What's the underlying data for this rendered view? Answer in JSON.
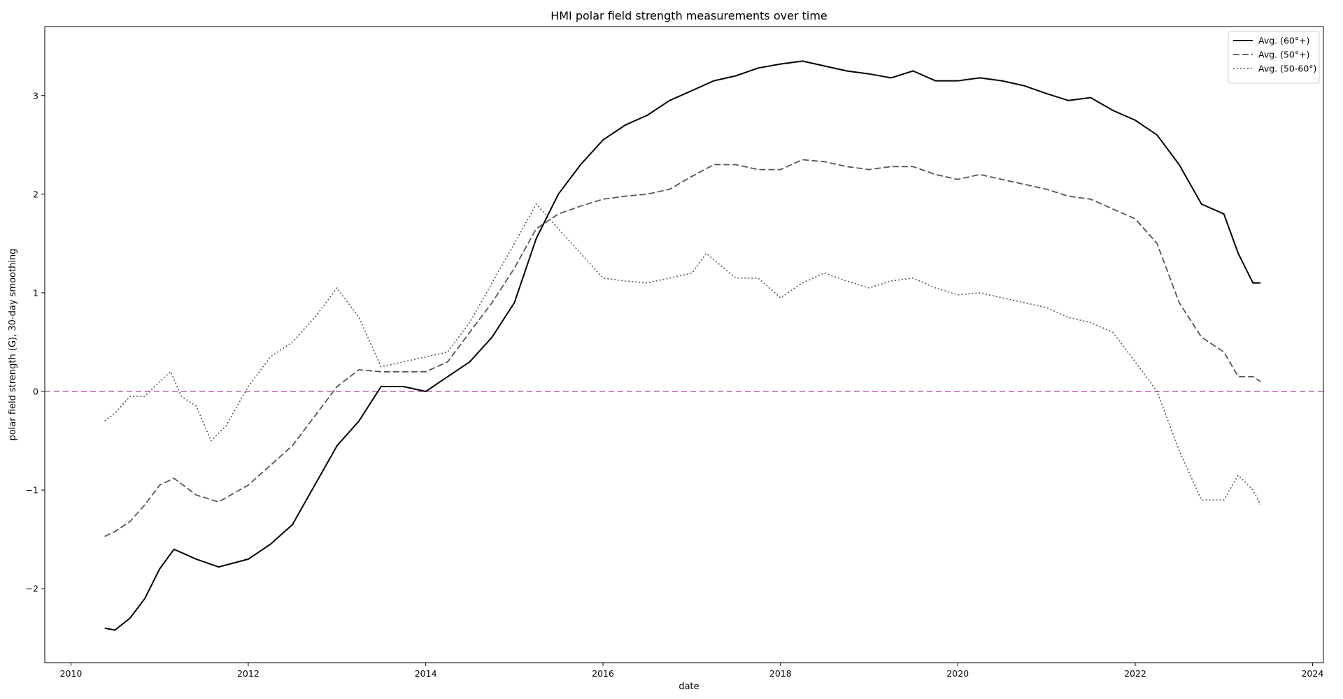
{
  "chart_data": {
    "type": "line",
    "title": "HMI polar field strength measurements over time",
    "xlabel": "date",
    "ylabel": "polar field strength (G), 30-day smoothing",
    "xlim": [
      "2009-09-15",
      "2024-02-15"
    ],
    "ylim": [
      -2.75,
      3.7
    ],
    "xticks": [
      "2010",
      "2012",
      "2014",
      "2016",
      "2018",
      "2020",
      "2022",
      "2024"
    ],
    "yticks": [
      -2,
      -1,
      0,
      1,
      2,
      3
    ],
    "ytick_labels": [
      "−2",
      "−1",
      "0",
      "1",
      "2",
      "3"
    ],
    "grid": false,
    "legend_position": "top-right",
    "reference_line": {
      "y": 0,
      "style": "dashed",
      "color": "#c060a8"
    },
    "series": [
      {
        "name": "Avg. (60°+)",
        "style": "solid",
        "color": "#000000",
        "points": [
          [
            "2010-05-20",
            -2.4
          ],
          [
            "2010-07-01",
            -2.42
          ],
          [
            "2010-09-01",
            -2.3
          ],
          [
            "2010-11-01",
            -2.1
          ],
          [
            "2011-01-01",
            -1.8
          ],
          [
            "2011-03-01",
            -1.6
          ],
          [
            "2011-06-01",
            -1.7
          ],
          [
            "2011-09-01",
            -1.78
          ],
          [
            "2012-01-01",
            -1.7
          ],
          [
            "2012-04-01",
            -1.55
          ],
          [
            "2012-07-01",
            -1.35
          ],
          [
            "2012-10-01",
            -0.95
          ],
          [
            "2013-01-01",
            -0.55
          ],
          [
            "2013-04-01",
            -0.3
          ],
          [
            "2013-07-01",
            0.05
          ],
          [
            "2013-10-01",
            0.05
          ],
          [
            "2014-01-01",
            0.0
          ],
          [
            "2014-04-01",
            0.15
          ],
          [
            "2014-07-01",
            0.3
          ],
          [
            "2014-10-01",
            0.55
          ],
          [
            "2015-01-01",
            0.9
          ],
          [
            "2015-04-01",
            1.55
          ],
          [
            "2015-07-01",
            2.0
          ],
          [
            "2015-10-01",
            2.3
          ],
          [
            "2016-01-01",
            2.55
          ],
          [
            "2016-04-01",
            2.7
          ],
          [
            "2016-07-01",
            2.8
          ],
          [
            "2016-10-01",
            2.95
          ],
          [
            "2017-01-01",
            3.05
          ],
          [
            "2017-04-01",
            3.15
          ],
          [
            "2017-07-01",
            3.2
          ],
          [
            "2017-10-01",
            3.28
          ],
          [
            "2018-01-01",
            3.32
          ],
          [
            "2018-04-01",
            3.35
          ],
          [
            "2018-07-01",
            3.3
          ],
          [
            "2018-10-01",
            3.25
          ],
          [
            "2019-01-01",
            3.22
          ],
          [
            "2019-04-01",
            3.18
          ],
          [
            "2019-07-01",
            3.25
          ],
          [
            "2019-10-01",
            3.15
          ],
          [
            "2020-01-01",
            3.15
          ],
          [
            "2020-04-01",
            3.18
          ],
          [
            "2020-07-01",
            3.15
          ],
          [
            "2020-10-01",
            3.1
          ],
          [
            "2021-01-01",
            3.02
          ],
          [
            "2021-04-01",
            2.95
          ],
          [
            "2021-07-01",
            2.98
          ],
          [
            "2021-10-01",
            2.85
          ],
          [
            "2022-01-01",
            2.75
          ],
          [
            "2022-04-01",
            2.6
          ],
          [
            "2022-07-01",
            2.3
          ],
          [
            "2022-10-01",
            1.9
          ],
          [
            "2023-01-01",
            1.8
          ],
          [
            "2023-03-01",
            1.4
          ],
          [
            "2023-05-01",
            1.1
          ],
          [
            "2023-06-01",
            1.1
          ]
        ]
      },
      {
        "name": "Avg. (50°+)",
        "style": "dashed",
        "color": "#555555",
        "points": [
          [
            "2010-05-20",
            -1.47
          ],
          [
            "2010-07-01",
            -1.42
          ],
          [
            "2010-09-01",
            -1.32
          ],
          [
            "2010-11-01",
            -1.15
          ],
          [
            "2011-01-01",
            -0.95
          ],
          [
            "2011-03-01",
            -0.88
          ],
          [
            "2011-06-01",
            -1.05
          ],
          [
            "2011-09-01",
            -1.12
          ],
          [
            "2012-01-01",
            -0.95
          ],
          [
            "2012-04-01",
            -0.75
          ],
          [
            "2012-07-01",
            -0.55
          ],
          [
            "2012-10-01",
            -0.25
          ],
          [
            "2013-01-01",
            0.05
          ],
          [
            "2013-04-01",
            0.22
          ],
          [
            "2013-07-01",
            0.2
          ],
          [
            "2013-10-01",
            0.2
          ],
          [
            "2014-01-01",
            0.2
          ],
          [
            "2014-04-01",
            0.3
          ],
          [
            "2014-07-01",
            0.6
          ],
          [
            "2014-10-01",
            0.9
          ],
          [
            "2015-01-01",
            1.25
          ],
          [
            "2015-04-01",
            1.65
          ],
          [
            "2015-07-01",
            1.8
          ],
          [
            "2015-10-01",
            1.88
          ],
          [
            "2016-01-01",
            1.95
          ],
          [
            "2016-04-01",
            1.98
          ],
          [
            "2016-07-01",
            2.0
          ],
          [
            "2016-10-01",
            2.05
          ],
          [
            "2017-01-01",
            2.18
          ],
          [
            "2017-04-01",
            2.3
          ],
          [
            "2017-07-01",
            2.3
          ],
          [
            "2017-10-01",
            2.25
          ],
          [
            "2018-01-01",
            2.25
          ],
          [
            "2018-04-01",
            2.35
          ],
          [
            "2018-07-01",
            2.33
          ],
          [
            "2018-10-01",
            2.28
          ],
          [
            "2019-01-01",
            2.25
          ],
          [
            "2019-04-01",
            2.28
          ],
          [
            "2019-07-01",
            2.28
          ],
          [
            "2019-10-01",
            2.2
          ],
          [
            "2020-01-01",
            2.15
          ],
          [
            "2020-04-01",
            2.2
          ],
          [
            "2020-07-01",
            2.15
          ],
          [
            "2020-10-01",
            2.1
          ],
          [
            "2021-01-01",
            2.05
          ],
          [
            "2021-04-01",
            1.98
          ],
          [
            "2021-07-01",
            1.95
          ],
          [
            "2021-10-01",
            1.85
          ],
          [
            "2022-01-01",
            1.75
          ],
          [
            "2022-04-01",
            1.5
          ],
          [
            "2022-07-01",
            0.9
          ],
          [
            "2022-10-01",
            0.55
          ],
          [
            "2023-01-01",
            0.4
          ],
          [
            "2023-03-01",
            0.15
          ],
          [
            "2023-05-01",
            0.15
          ],
          [
            "2023-06-01",
            0.1
          ]
        ]
      },
      {
        "name": "Avg. (50-60°)",
        "style": "dotted",
        "color": "#555555",
        "points": [
          [
            "2010-05-20",
            -0.3
          ],
          [
            "2010-07-01",
            -0.22
          ],
          [
            "2010-09-01",
            -0.05
          ],
          [
            "2010-11-01",
            -0.05
          ],
          [
            "2011-01-01",
            0.1
          ],
          [
            "2011-02-15",
            0.2
          ],
          [
            "2011-04-01",
            -0.05
          ],
          [
            "2011-06-01",
            -0.15
          ],
          [
            "2011-08-01",
            -0.5
          ],
          [
            "2011-10-01",
            -0.35
          ],
          [
            "2012-01-01",
            0.05
          ],
          [
            "2012-04-01",
            0.35
          ],
          [
            "2012-07-01",
            0.5
          ],
          [
            "2012-10-01",
            0.75
          ],
          [
            "2013-01-01",
            1.05
          ],
          [
            "2013-04-01",
            0.75
          ],
          [
            "2013-07-01",
            0.25
          ],
          [
            "2013-10-01",
            0.3
          ],
          [
            "2014-01-01",
            0.35
          ],
          [
            "2014-04-01",
            0.4
          ],
          [
            "2014-07-01",
            0.7
          ],
          [
            "2014-10-01",
            1.1
          ],
          [
            "2015-01-01",
            1.5
          ],
          [
            "2015-04-01",
            1.9
          ],
          [
            "2015-07-01",
            1.65
          ],
          [
            "2015-10-01",
            1.4
          ],
          [
            "2016-01-01",
            1.15
          ],
          [
            "2016-04-01",
            1.12
          ],
          [
            "2016-07-01",
            1.1
          ],
          [
            "2016-10-01",
            1.15
          ],
          [
            "2017-01-01",
            1.2
          ],
          [
            "2017-03-01",
            1.4
          ],
          [
            "2017-07-01",
            1.15
          ],
          [
            "2017-10-01",
            1.15
          ],
          [
            "2018-01-01",
            0.95
          ],
          [
            "2018-04-01",
            1.1
          ],
          [
            "2018-07-01",
            1.2
          ],
          [
            "2018-10-01",
            1.12
          ],
          [
            "2019-01-01",
            1.05
          ],
          [
            "2019-04-01",
            1.12
          ],
          [
            "2019-07-01",
            1.15
          ],
          [
            "2019-10-01",
            1.05
          ],
          [
            "2020-01-01",
            0.98
          ],
          [
            "2020-04-01",
            1.0
          ],
          [
            "2020-07-01",
            0.95
          ],
          [
            "2020-10-01",
            0.9
          ],
          [
            "2021-01-01",
            0.85
          ],
          [
            "2021-04-01",
            0.75
          ],
          [
            "2021-07-01",
            0.7
          ],
          [
            "2021-10-01",
            0.6
          ],
          [
            "2022-01-01",
            0.3
          ],
          [
            "2022-04-01",
            0.0
          ],
          [
            "2022-07-01",
            -0.6
          ],
          [
            "2022-10-01",
            -1.1
          ],
          [
            "2023-01-01",
            -1.1
          ],
          [
            "2023-03-01",
            -0.85
          ],
          [
            "2023-05-01",
            -1.0
          ],
          [
            "2023-06-01",
            -1.15
          ]
        ]
      }
    ]
  }
}
